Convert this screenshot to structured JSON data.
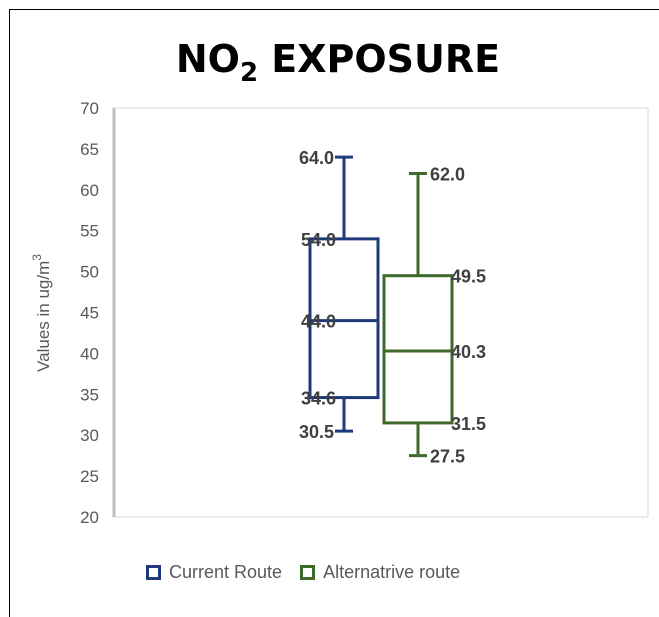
{
  "chart_data": {
    "type": "box",
    "title": {
      "main": "NO",
      "sub": "2",
      "rest": " EXPOSURE"
    },
    "ylabel": {
      "main": "Values in ug/m",
      "sup": "3"
    },
    "ylim": [
      20,
      70
    ],
    "yticks": [
      20,
      25,
      30,
      35,
      40,
      45,
      50,
      55,
      60,
      65,
      70
    ],
    "grid": false,
    "legend_position": "bottom",
    "series": [
      {
        "name": "Current Route",
        "color": "#1f3a7a",
        "min": 30.5,
        "q1": 34.6,
        "median": 44.0,
        "q3": 54.0,
        "max": 64.0,
        "labels": {
          "min": "30.5",
          "q1": "34.6",
          "median": "44.0",
          "q3": "54.0",
          "max": "64.0"
        }
      },
      {
        "name": "Alternatrive route",
        "color": "#3f6a2c",
        "min": 27.5,
        "q1": 31.5,
        "median": 40.3,
        "q3": 49.5,
        "max": 62.0,
        "labels": {
          "min": "27.5",
          "q1": "31.5",
          "median": "40.3",
          "q3": "49.5",
          "max": "62.0"
        }
      }
    ]
  }
}
